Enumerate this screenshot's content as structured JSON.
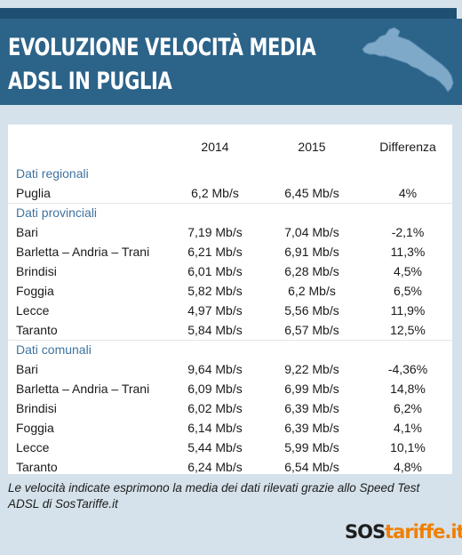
{
  "title": {
    "line1": "Evoluzione velocità media",
    "line2": "ADSL in Puglia"
  },
  "table": {
    "headers": [
      "",
      "2014",
      "2015",
      "Differenza"
    ],
    "sections": [
      {
        "label": "Dati regionali",
        "rows": [
          [
            "Puglia",
            "6,2 Mb/s",
            "6,45 Mb/s",
            "4%"
          ]
        ]
      },
      {
        "label": "Dati provinciali",
        "rows": [
          [
            "Bari",
            "7,19 Mb/s",
            "7,04 Mb/s",
            "-2,1%"
          ],
          [
            "Barletta – Andria – Trani",
            "6,21 Mb/s",
            "6,91 Mb/s",
            "11,3%"
          ],
          [
            "Brindisi",
            "6,01 Mb/s",
            "6,28 Mb/s",
            "4,5%"
          ],
          [
            "Foggia",
            "5,82 Mb/s",
            "6,2 Mb/s",
            "6,5%"
          ],
          [
            "Lecce",
            "4,97 Mb/s",
            "5,56 Mb/s",
            "11,9%"
          ],
          [
            "Taranto",
            "5,84 Mb/s",
            "6,57 Mb/s",
            "12,5%"
          ]
        ]
      },
      {
        "label": "Dati comunali",
        "rows": [
          [
            "Bari",
            "9,64 Mb/s",
            "9,22 Mb/s",
            "-4,36%"
          ],
          [
            "Barletta – Andria – Trani",
            "6,09 Mb/s",
            "6,99 Mb/s",
            "14,8%"
          ],
          [
            "Brindisi",
            "6,02 Mb/s",
            "6,39 Mb/s",
            "6,2%"
          ],
          [
            "Foggia",
            "6,14 Mb/s",
            "6,39 Mb/s",
            "4,1%"
          ],
          [
            "Lecce",
            "5,44 Mb/s",
            "5,99 Mb/s",
            "10,1%"
          ],
          [
            "Taranto",
            "6,24 Mb/s",
            "6,54 Mb/s",
            "4,8%"
          ]
        ]
      }
    ]
  },
  "footnote": "Le velocità indicate esprimono la media dei dati rilevati grazie allo Speed Test ADSL di SosTariffe.it",
  "logo": {
    "part1": "SOS",
    "part2": "tariffe.it"
  },
  "colors": {
    "header_bg": "#2c6389",
    "page_bg": "#d5e2eb",
    "section_label": "#3e73a0",
    "logo_accent": "#f07f00"
  },
  "icons": {
    "region_map": "puglia-map-icon"
  }
}
